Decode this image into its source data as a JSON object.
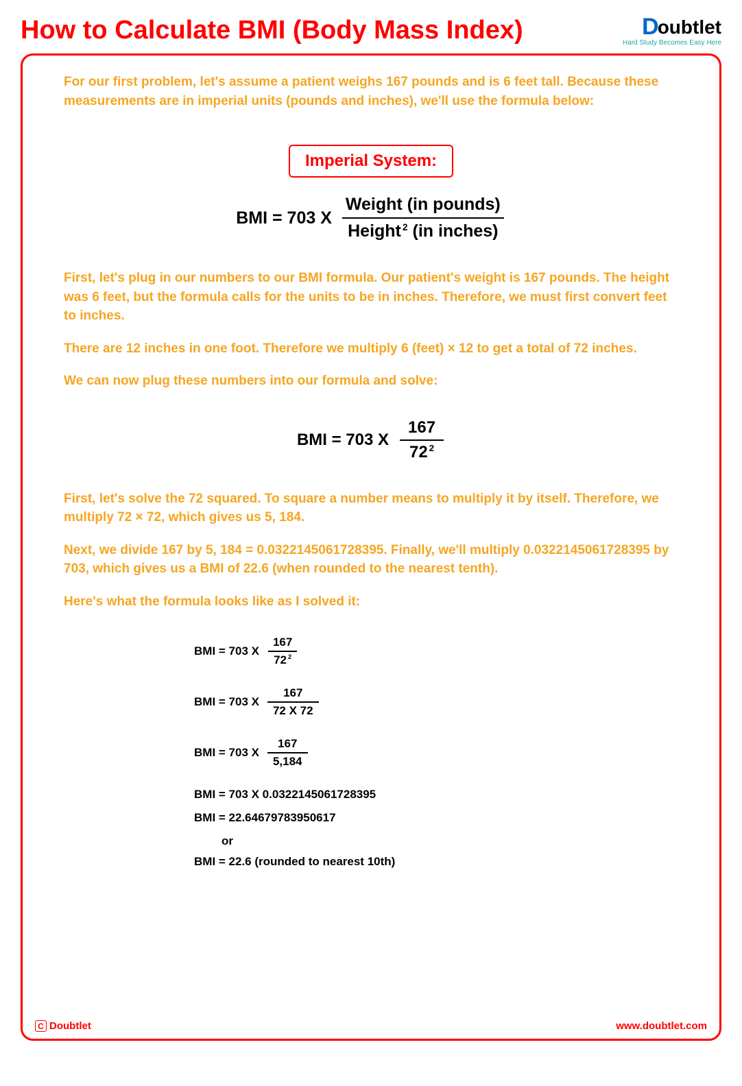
{
  "header": {
    "title": "How to Calculate BMI (Body Mass Index)",
    "logo_brand": "oubtlet",
    "logo_d": "D",
    "logo_tagline": "Hard Study Becomes Easy Here"
  },
  "colors": {
    "accent": "#ff0000",
    "body_text": "#f5a623",
    "logo_blue": "#0066cc",
    "logo_teal": "#1aa99f"
  },
  "paragraphs": {
    "p1": "For our first problem, let's assume a patient weighs 167 pounds and is 6 feet tall. Because these measurements are in imperial units (pounds and inches), we'll use the formula below:",
    "p2": "First, let's plug in our numbers to our BMI formula. Our patient's weight is 167 pounds. The height was 6 feet, but the formula calls for the units to be in inches. Therefore, we must first convert feet to inches.",
    "p3": "There are 12 inches in one foot. Therefore we multiply 6 (feet) × 12 to get a total of 72 inches.",
    "p4": "We can now plug these numbers into our formula and solve:",
    "p5": "First, let's solve the 72 squared. To square a number means to multiply it by itself. Therefore, we multiply 72 × 72, which gives us 5, 184.",
    "p6": "Next, we divide 167 by 5, 184 = 0.0322145061728395. Finally, we'll multiply 0.0322145061728395 by 703, which gives us a BMI of 22.6 (when rounded to the nearest tenth).",
    "p7": "Here's what the formula looks like as I solved it:"
  },
  "system_label": "Imperial System:",
  "formula_general": {
    "lhs": "BMI = 703  X",
    "numerator": "Weight (in pounds)",
    "denominator_pre": "Height",
    "denominator_exp": "2",
    "denominator_post": " (in inches)"
  },
  "formula_plugged": {
    "lhs": "BMI = 703  X",
    "numerator": "167",
    "denominator_base": "72",
    "denominator_exp": "2"
  },
  "steps": {
    "s1": {
      "lhs": "BMI = 703  X",
      "num": "167",
      "den_base": "72",
      "den_exp": "2"
    },
    "s2": {
      "lhs": "BMI = 703  X",
      "num": "167",
      "den": "72 X 72"
    },
    "s3": {
      "lhs": "BMI = 703  X",
      "num": "167",
      "den": "5,184"
    },
    "s4": "BMI = 703  X   0.0322145061728395",
    "s5": "BMI = 22.64679783950617",
    "or": "or",
    "s6": "BMI =  22.6 (rounded to nearest 10th)"
  },
  "footer": {
    "copyright_c": "C",
    "brand": "Doubtlet",
    "url": "www.doubtlet.com"
  }
}
